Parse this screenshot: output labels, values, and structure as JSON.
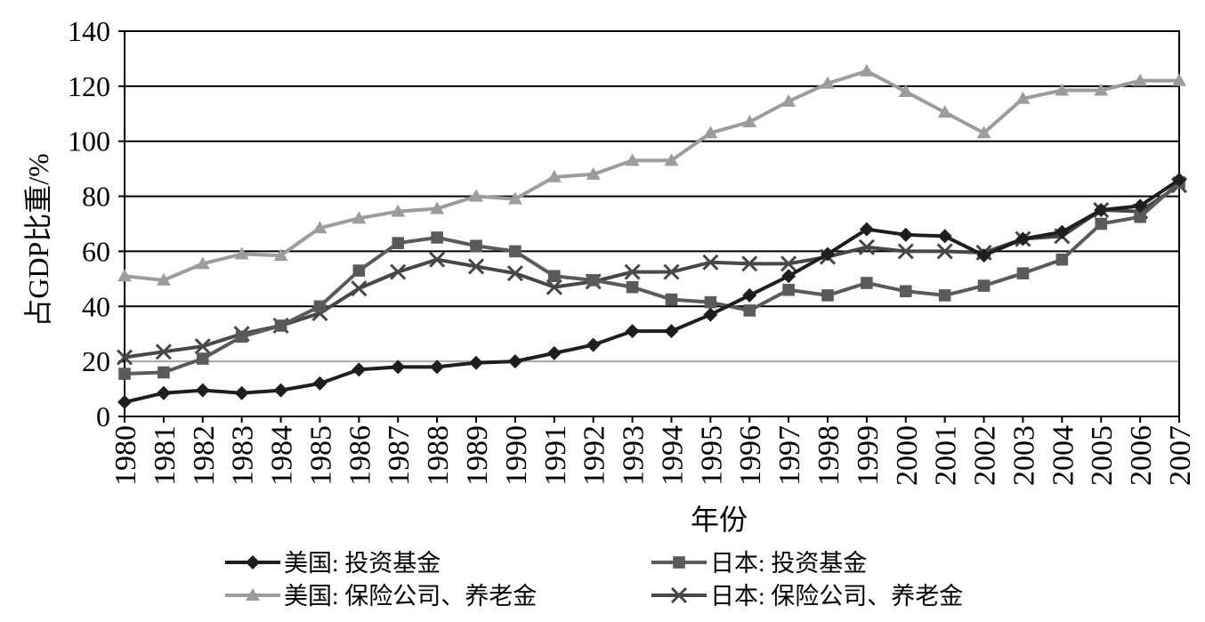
{
  "chart_data": {
    "type": "line",
    "title": "",
    "xlabel": "年份",
    "ylabel": "占GDP比重/%",
    "x": [
      "1980",
      "1981",
      "1982",
      "1983",
      "1984",
      "1985",
      "1986",
      "1987",
      "1988",
      "1989",
      "1990",
      "1991",
      "1992",
      "1993",
      "1994",
      "1995",
      "1996",
      "1997",
      "1998",
      "1999",
      "2000",
      "2001",
      "2002",
      "2003",
      "2004",
      "2005",
      "2006",
      "2007"
    ],
    "ylim": [
      0,
      140
    ],
    "yticks": [
      0,
      20,
      40,
      60,
      80,
      100,
      120,
      140
    ],
    "grid": true,
    "legend": "bottom",
    "series": [
      {
        "name": "美国: 投资基金",
        "marker": "diamond",
        "color": "#1e1e1e",
        "values": [
          5.2,
          8.5,
          9.5,
          8.5,
          9.5,
          12,
          17,
          18,
          18,
          19.5,
          20,
          23,
          26,
          31,
          31,
          37,
          44,
          51,
          59,
          68,
          66,
          65.5,
          58.5,
          64.5,
          67,
          75,
          76.5,
          86
        ]
      },
      {
        "name": "日本: 投资基金",
        "marker": "square",
        "color": "#5a5a5a",
        "values": [
          15.5,
          16,
          21,
          29,
          33,
          40,
          53,
          63,
          65,
          62,
          60,
          51,
          49.5,
          47,
          42.5,
          41.5,
          38.5,
          46,
          44,
          48.5,
          45.5,
          44,
          47.5,
          52,
          57,
          70,
          72.5,
          85
        ]
      },
      {
        "name": "美国: 保险公司、养老金",
        "marker": "triangle",
        "color": "#9c9c9c",
        "values": [
          51,
          49.5,
          55.5,
          59,
          58.5,
          68.5,
          72,
          74.5,
          75.5,
          80,
          79,
          87,
          88,
          93,
          93,
          103,
          107,
          114.5,
          121,
          125.5,
          118,
          110.5,
          103,
          115.5,
          118.5,
          118.5,
          122,
          122
        ]
      },
      {
        "name": "日本: 保险公司、养老金",
        "marker": "x",
        "color": "#474747",
        "values": [
          21.5,
          23.5,
          25.5,
          30,
          33,
          37.5,
          46.5,
          52.5,
          57,
          54.5,
          52,
          47,
          49,
          52.5,
          52.5,
          56,
          55.5,
          55.5,
          58,
          61.5,
          60,
          60,
          59.5,
          64.5,
          65.5,
          75,
          74.5,
          84
        ]
      }
    ]
  }
}
